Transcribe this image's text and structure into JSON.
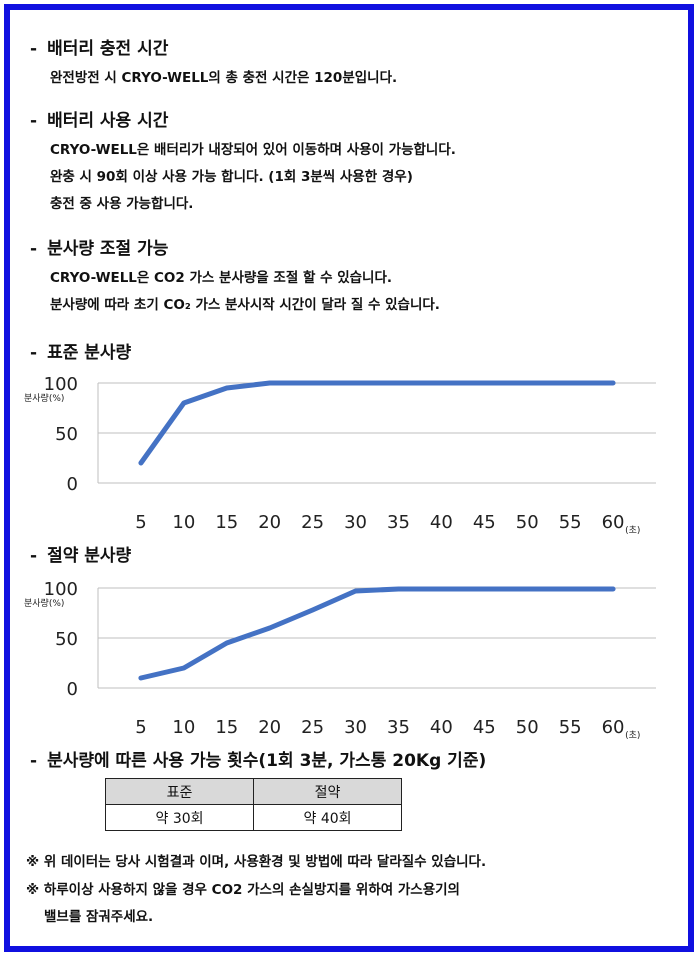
{
  "sections": {
    "charge": {
      "bullet": "-",
      "title": "배터리 충전 시간",
      "lines": [
        "완전방전 시 CRYO-WELL의 총 충전 시간은 120분입니다."
      ]
    },
    "usage": {
      "bullet": "-",
      "title": "배터리 사용 시간",
      "lines": [
        "CRYO-WELL은 배터리가 내장되어 있어 이동하며 사용이 가능합니다.",
        "완충 시 90회 이상 사용 가능 합니다. (1회 3분씩 사용한 경우)",
        "충전 중 사용 가능합니다."
      ]
    },
    "spray": {
      "bullet": "-",
      "title": "분사량 조절 가능",
      "lines": [
        "CRYO-WELL은 CO2 가스 분사량을 조절 할 수 있습니다.",
        "분사량에 따라 초기 CO₂ 가스 분사시작 시간이 달라 질 수 있습니다."
      ]
    },
    "standard": {
      "bullet": "-",
      "title": "표준 분사량"
    },
    "economy": {
      "bullet": "-",
      "title": "절약 분사량"
    },
    "count": {
      "bullet": "-",
      "title": "분사량에 따른 사용 가능 횟수(1회 3분, 가스통 20Kg 기준)"
    }
  },
  "chart_data": [
    {
      "type": "line",
      "ylabel": "분사량(%)",
      "xunit": "(초)",
      "x": [
        5,
        10,
        15,
        20,
        25,
        30,
        35,
        40,
        45,
        50,
        55,
        60
      ],
      "xticks": [
        "5",
        "10",
        "15",
        "20",
        "25",
        "30",
        "35",
        "40",
        "45",
        "50",
        "55",
        "60"
      ],
      "yticks": [
        "0",
        "50",
        "100"
      ],
      "ylim": [
        0,
        100
      ],
      "grid": true,
      "color": "#4472c4",
      "series": [
        {
          "values": [
            20,
            80,
            95,
            100,
            100,
            100,
            100,
            100,
            100,
            100,
            100,
            100
          ]
        }
      ]
    },
    {
      "type": "line",
      "ylabel": "분사량(%)",
      "xunit": "(초)",
      "x": [
        5,
        10,
        15,
        20,
        25,
        30,
        35,
        40,
        45,
        50,
        55,
        60
      ],
      "xticks": [
        "5",
        "10",
        "15",
        "20",
        "25",
        "30",
        "35",
        "40",
        "45",
        "50",
        "55",
        "60"
      ],
      "yticks": [
        "0",
        "50",
        "100"
      ],
      "ylim": [
        0,
        100
      ],
      "grid": true,
      "color": "#4472c4",
      "series": [
        {
          "values": [
            10,
            20,
            45,
            60,
            78,
            97,
            99,
            99,
            99,
            99,
            99,
            99
          ]
        }
      ]
    }
  ],
  "usage_table": {
    "headers": [
      "표준",
      "절약"
    ],
    "values": [
      "약 30회",
      "약 40회"
    ]
  },
  "notes": [
    "※ 위 데이터는 당사 시험결과 이며, 사용환경 및 방법에 따라 달라질수 있습니다.",
    "※ 하루이상 사용하지 않을 경우 CO2 가스의 손실방지를 위하여 가스용기의",
    "밸브를 잠궈주세요."
  ]
}
